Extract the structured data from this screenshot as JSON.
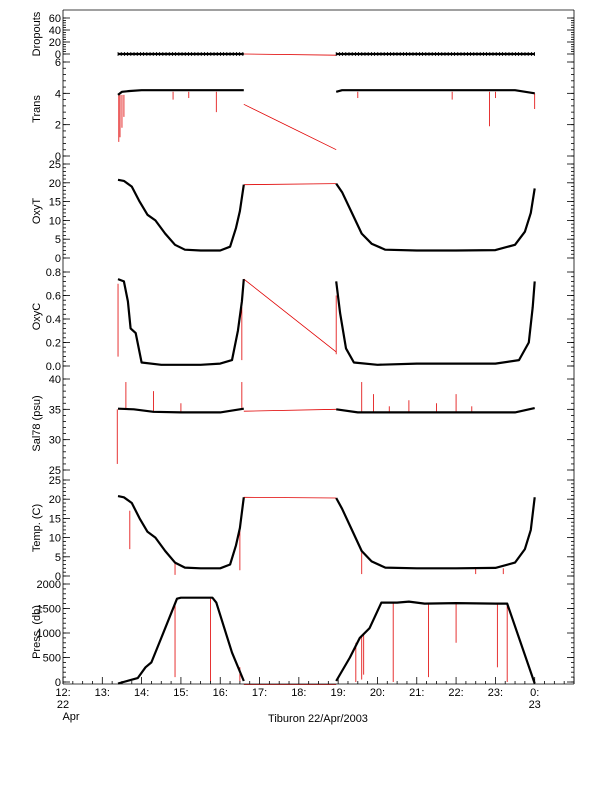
{
  "chart_data": {
    "type": "line",
    "title": "",
    "xlabel": "Tiburon 22/Apr/2003",
    "x_range": [
      12,
      25
    ],
    "x_ticks": [
      {
        "v": 12,
        "l1": "12:",
        "l2": "22",
        "l3": "Apr"
      },
      {
        "v": 13,
        "l1": "13:",
        "l2": "",
        "l3": ""
      },
      {
        "v": 14,
        "l1": "14:",
        "l2": "",
        "l3": ""
      },
      {
        "v": 15,
        "l1": "15:",
        "l2": "",
        "l3": ""
      },
      {
        "v": 16,
        "l1": "16:",
        "l2": "",
        "l3": ""
      },
      {
        "v": 17,
        "l1": "17:",
        "l2": "",
        "l3": ""
      },
      {
        "v": 18,
        "l1": "18:",
        "l2": "",
        "l3": ""
      },
      {
        "v": 19,
        "l1": "19:",
        "l2": "",
        "l3": ""
      },
      {
        "v": 20,
        "l1": "20:",
        "l2": "",
        "l3": ""
      },
      {
        "v": 21,
        "l1": "21:",
        "l2": "",
        "l3": ""
      },
      {
        "v": 22,
        "l1": "22:",
        "l2": "",
        "l3": ""
      },
      {
        "v": 23,
        "l1": "23:",
        "l2": "",
        "l3": ""
      },
      {
        "v": 24,
        "l1": "0:",
        "l2": "23",
        "l3": ""
      }
    ],
    "gap_color": "#e00000",
    "trace_color": "#000000",
    "panels": [
      {
        "name": "Dropouts",
        "ylabel": "Dropouts",
        "ylim": [
          0,
          60
        ],
        "yticks": [
          0,
          20,
          40,
          60
        ],
        "ytick_labels": [
          "0",
          "20",
          "40",
          "60"
        ],
        "segments": [
          [
            [
              13.4,
              0
            ],
            [
              16.6,
              0
            ]
          ],
          [
            [
              18.95,
              0
            ],
            [
              24.0,
              0
            ]
          ]
        ],
        "gaps": [
          [
            [
              16.6,
              0
            ],
            [
              18.95,
              -2
            ]
          ]
        ],
        "spikes": []
      },
      {
        "name": "Trans",
        "ylabel": "Trans",
        "ylim": [
          0,
          6
        ],
        "yticks": [
          0,
          2,
          4,
          6
        ],
        "ytick_labels": [
          "0",
          "2",
          "4",
          "6"
        ],
        "segments": [
          [
            [
              13.4,
              3.9
            ],
            [
              13.5,
              4.1
            ],
            [
              13.7,
              4.15
            ],
            [
              14.0,
              4.2
            ],
            [
              14.8,
              4.2
            ],
            [
              15.5,
              4.2
            ],
            [
              16.2,
              4.2
            ],
            [
              16.6,
              4.2
            ]
          ],
          [
            [
              18.95,
              4.1
            ],
            [
              19.1,
              4.2
            ],
            [
              19.5,
              4.2
            ],
            [
              20.5,
              4.2
            ],
            [
              21.5,
              4.2
            ],
            [
              22.5,
              4.2
            ],
            [
              23.5,
              4.2
            ],
            [
              24.0,
              4.0
            ]
          ]
        ],
        "gaps": [
          [
            [
              16.6,
              3.3
            ],
            [
              18.95,
              0.4
            ]
          ]
        ],
        "spikes": [
          [
            13.42,
            3.9,
            0.9
          ],
          [
            13.45,
            3.9,
            1.2
          ],
          [
            13.5,
            3.9,
            1.8
          ],
          [
            13.55,
            3.9,
            2.5
          ],
          [
            14.8,
            4.1,
            3.6
          ],
          [
            15.2,
            4.1,
            3.7
          ],
          [
            15.9,
            4.1,
            2.8
          ],
          [
            19.5,
            4.1,
            3.7
          ],
          [
            21.9,
            4.1,
            3.6
          ],
          [
            22.85,
            4.1,
            1.9
          ],
          [
            23.0,
            4.1,
            3.7
          ],
          [
            24.0,
            4.0,
            3.0
          ]
        ]
      },
      {
        "name": "OxyT",
        "ylabel": "OxyT",
        "ylim": [
          0,
          25
        ],
        "yticks": [
          0,
          5,
          10,
          15,
          20,
          25
        ],
        "ytick_labels": [
          "0",
          "5",
          "10",
          "15",
          "20",
          "25"
        ],
        "segments": [
          [
            [
              13.4,
              20.8
            ],
            [
              13.55,
              20.5
            ],
            [
              13.75,
              19.0
            ],
            [
              13.95,
              15.0
            ],
            [
              14.15,
              11.5
            ],
            [
              14.35,
              10.0
            ],
            [
              14.6,
              6.5
            ],
            [
              14.85,
              3.5
            ],
            [
              15.1,
              2.2
            ],
            [
              15.5,
              2.0
            ],
            [
              16.0,
              2.0
            ],
            [
              16.25,
              3.0
            ],
            [
              16.4,
              8.0
            ],
            [
              16.5,
              12.5
            ],
            [
              16.6,
              19.5
            ]
          ],
          [
            [
              18.95,
              19.8
            ],
            [
              19.1,
              17.5
            ],
            [
              19.35,
              12.0
            ],
            [
              19.6,
              6.5
            ],
            [
              19.85,
              3.8
            ],
            [
              20.2,
              2.2
            ],
            [
              21.0,
              2.0
            ],
            [
              22.0,
              2.0
            ],
            [
              23.0,
              2.1
            ],
            [
              23.5,
              3.5
            ],
            [
              23.75,
              7.0
            ],
            [
              23.9,
              12.0
            ],
            [
              24.0,
              18.5
            ]
          ]
        ],
        "gaps": [
          [
            [
              16.6,
              19.5
            ],
            [
              18.95,
              19.8
            ]
          ]
        ],
        "spikes": []
      },
      {
        "name": "OxyC",
        "ylabel": "OxyC",
        "ylim": [
          0,
          0.8
        ],
        "yticks": [
          0,
          0.2,
          0.4,
          0.6,
          0.8
        ],
        "ytick_labels": [
          "0.0",
          "0.2",
          "0.4",
          "0.6",
          "0.8"
        ],
        "segments": [
          [
            [
              13.4,
              0.74
            ],
            [
              13.55,
              0.72
            ],
            [
              13.65,
              0.55
            ],
            [
              13.72,
              0.32
            ],
            [
              13.85,
              0.28
            ],
            [
              14.0,
              0.03
            ],
            [
              14.5,
              0.01
            ],
            [
              15.5,
              0.01
            ],
            [
              16.0,
              0.02
            ],
            [
              16.3,
              0.05
            ],
            [
              16.45,
              0.3
            ],
            [
              16.55,
              0.55
            ],
            [
              16.6,
              0.74
            ]
          ],
          [
            [
              18.95,
              0.72
            ],
            [
              19.05,
              0.45
            ],
            [
              19.2,
              0.15
            ],
            [
              19.4,
              0.03
            ],
            [
              20.0,
              0.01
            ],
            [
              21.0,
              0.02
            ],
            [
              22.0,
              0.02
            ],
            [
              23.0,
              0.02
            ],
            [
              23.6,
              0.05
            ],
            [
              23.85,
              0.2
            ],
            [
              23.95,
              0.5
            ],
            [
              24.0,
              0.72
            ]
          ]
        ],
        "gaps": [
          [
            [
              16.6,
              0.74
            ],
            [
              18.95,
              0.12
            ]
          ]
        ],
        "spikes": [
          [
            13.4,
            0.7,
            0.08
          ],
          [
            16.55,
            0.5,
            0.05
          ],
          [
            18.95,
            0.6,
            0.1
          ]
        ]
      },
      {
        "name": "Sal78",
        "ylabel": "Sal78 (psu)",
        "ylim": [
          25,
          40
        ],
        "yticks": [
          25,
          30,
          35,
          40
        ],
        "ytick_labels": [
          "25",
          "30",
          "35",
          "40"
        ],
        "segments": [
          [
            [
              13.4,
              35.1
            ],
            [
              13.8,
              35.0
            ],
            [
              14.3,
              34.6
            ],
            [
              15.0,
              34.5
            ],
            [
              16.0,
              34.5
            ],
            [
              16.6,
              35.1
            ]
          ],
          [
            [
              18.95,
              35.0
            ],
            [
              19.5,
              34.5
            ],
            [
              20.5,
              34.5
            ],
            [
              22.0,
              34.5
            ],
            [
              23.5,
              34.5
            ],
            [
              24.0,
              35.2
            ]
          ]
        ],
        "gaps": [
          [
            [
              16.6,
              34.7
            ],
            [
              18.95,
              35.0
            ]
          ]
        ],
        "spikes": [
          [
            13.38,
            35.0,
            26.0
          ],
          [
            13.6,
            35.0,
            39.5
          ],
          [
            14.3,
            34.6,
            38.0
          ],
          [
            15.0,
            34.5,
            36.0
          ],
          [
            16.55,
            35.0,
            39.5
          ],
          [
            19.6,
            34.5,
            39.5
          ],
          [
            19.9,
            34.5,
            37.5
          ],
          [
            20.3,
            34.5,
            35.5
          ],
          [
            20.8,
            34.5,
            36.5
          ],
          [
            21.5,
            34.5,
            36.0
          ],
          [
            22.0,
            34.5,
            37.5
          ],
          [
            22.4,
            34.5,
            35.5
          ]
        ]
      },
      {
        "name": "Temp",
        "ylabel": "Temp. (C)",
        "ylim": [
          0,
          25
        ],
        "yticks": [
          0,
          5,
          10,
          15,
          20,
          25
        ],
        "ytick_labels": [
          "0",
          "5",
          "10",
          "15",
          "20",
          "25"
        ],
        "segments": [
          [
            [
              13.4,
              20.8
            ],
            [
              13.55,
              20.5
            ],
            [
              13.75,
              19.0
            ],
            [
              13.95,
              15.0
            ],
            [
              14.15,
              11.5
            ],
            [
              14.35,
              10.0
            ],
            [
              14.6,
              6.5
            ],
            [
              14.85,
              3.5
            ],
            [
              15.1,
              2.2
            ],
            [
              15.5,
              2.0
            ],
            [
              16.0,
              2.0
            ],
            [
              16.25,
              3.0
            ],
            [
              16.4,
              8.0
            ],
            [
              16.5,
              12.5
            ],
            [
              16.6,
              20.5
            ]
          ],
          [
            [
              18.95,
              20.3
            ],
            [
              19.1,
              17.5
            ],
            [
              19.35,
              12.0
            ],
            [
              19.6,
              6.5
            ],
            [
              19.85,
              3.8
            ],
            [
              20.2,
              2.2
            ],
            [
              21.0,
              2.0
            ],
            [
              22.0,
              2.0
            ],
            [
              23.0,
              2.1
            ],
            [
              23.5,
              3.5
            ],
            [
              23.75,
              7.0
            ],
            [
              23.9,
              12.0
            ],
            [
              24.0,
              20.5
            ]
          ]
        ],
        "gaps": [
          [
            [
              16.6,
              20.5
            ],
            [
              18.95,
              20.3
            ]
          ]
        ],
        "spikes": [
          [
            13.7,
            17.0,
            7.0
          ],
          [
            14.85,
            3.5,
            0.3
          ],
          [
            16.5,
            12.5,
            1.5
          ],
          [
            19.6,
            6.5,
            0.5
          ],
          [
            22.5,
            2.0,
            0.5
          ],
          [
            23.2,
            2.0,
            0.5
          ]
        ]
      },
      {
        "name": "Press",
        "ylabel": "Press. (db)",
        "ylim": [
          0,
          2000
        ],
        "yticks": [
          0,
          500,
          1000,
          1500,
          2000
        ],
        "ytick_labels": [
          "0",
          "500",
          "1000",
          "1500",
          "2000"
        ],
        "segments": [
          [
            [
              13.4,
              -30
            ],
            [
              13.9,
              80
            ],
            [
              14.1,
              300
            ],
            [
              14.25,
              400
            ],
            [
              14.5,
              900
            ],
            [
              14.9,
              1700
            ],
            [
              15.0,
              1720
            ],
            [
              15.8,
              1720
            ],
            [
              15.9,
              1620
            ],
            [
              16.3,
              600
            ],
            [
              16.6,
              20
            ]
          ],
          [
            [
              18.95,
              20
            ],
            [
              19.3,
              500
            ],
            [
              19.55,
              900
            ],
            [
              19.8,
              1100
            ],
            [
              20.1,
              1620
            ],
            [
              20.5,
              1620
            ],
            [
              20.8,
              1640
            ],
            [
              21.2,
              1600
            ],
            [
              22.0,
              1610
            ],
            [
              23.0,
              1600
            ],
            [
              23.3,
              1600
            ],
            [
              24.0,
              -30
            ]
          ]
        ],
        "gaps": [
          [
            [
              16.6,
              -50
            ],
            [
              18.95,
              -50
            ]
          ]
        ],
        "spikes": [
          [
            14.85,
            1600,
            100
          ],
          [
            15.75,
            1700,
            0
          ],
          [
            16.5,
            300,
            0
          ],
          [
            19.45,
            800,
            0
          ],
          [
            19.6,
            950,
            50
          ],
          [
            19.65,
            1000,
            150
          ],
          [
            20.4,
            1620,
            0
          ],
          [
            21.3,
            1600,
            100
          ],
          [
            22.0,
            1610,
            800
          ],
          [
            23.05,
            1600,
            300
          ],
          [
            23.3,
            1600,
            0
          ]
        ]
      }
    ]
  }
}
